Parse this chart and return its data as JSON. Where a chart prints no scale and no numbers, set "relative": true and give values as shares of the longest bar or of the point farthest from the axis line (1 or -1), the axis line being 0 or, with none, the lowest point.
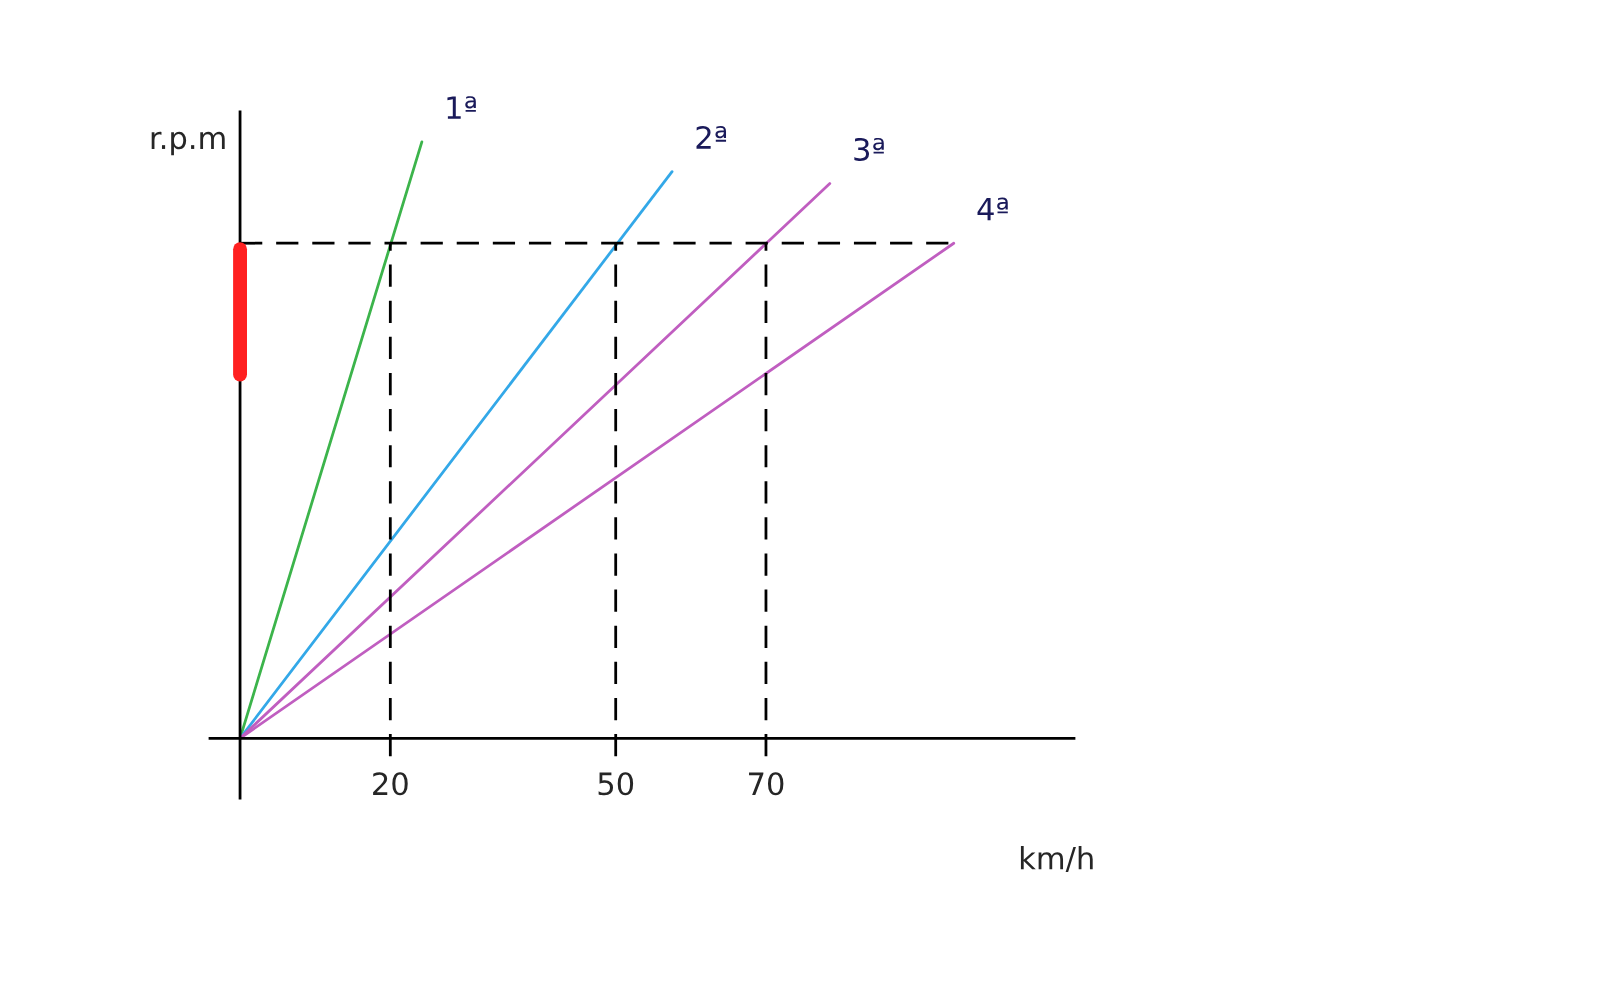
{
  "chart_data": {
    "type": "line",
    "relative": true,
    "xlabel": "km/h",
    "ylabel": "r.p.m",
    "xlim": [
      -4,
      111
    ],
    "xticks": [
      20,
      50,
      70
    ],
    "tick_labels": "x",
    "grid": false,
    "legend": false,
    "marker": "none",
    "line_style": "solid",
    "series": [
      {
        "name": "1ª",
        "color": "#3cb44b",
        "x": [
          0,
          24.2
        ],
        "values": [
          0,
          1
        ]
      },
      {
        "name": "2ª",
        "color": "#33a8e8",
        "x": [
          0,
          57.5
        ],
        "values": [
          0,
          0.95
        ]
      },
      {
        "name": "3ª",
        "color": "#c05ec0",
        "x": [
          0,
          78.5
        ],
        "values": [
          0,
          0.93
        ]
      },
      {
        "name": "4ª",
        "color": "#c05ec0",
        "x": [
          0,
          95
        ],
        "values": [
          0,
          0.83
        ]
      },
      {
        "color": "#ff2020",
        "x": [
          0,
          0
        ],
        "values": [
          0.61,
          0.82
        ]
      }
    ],
    "ref_lines": [
      {
        "axis": "y",
        "value": 0.83,
        "color": "#000000",
        "line_style": "dashed"
      },
      {
        "axis": "x",
        "value": 20,
        "color": "#000000",
        "line_style": "dashed"
      },
      {
        "axis": "x",
        "value": 50,
        "color": "#000000",
        "line_style": "dashed"
      },
      {
        "axis": "x",
        "value": 70,
        "color": "#000000",
        "line_style": "dashed"
      }
    ]
  }
}
